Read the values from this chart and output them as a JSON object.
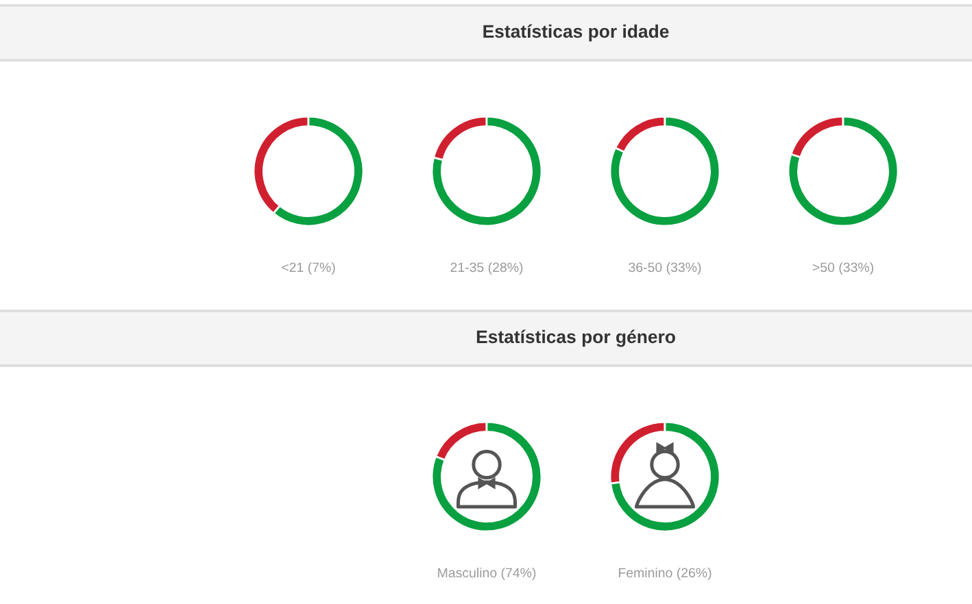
{
  "chart_data": [
    {
      "type": "other",
      "title": "Estatísticas por idade"
    },
    {
      "type": "donut",
      "xlabel": "<21 (7%)",
      "categories": [
        null,
        null
      ],
      "values": [
        39,
        61
      ],
      "colors": [
        "#d0202f",
        "#08a040"
      ]
    },
    {
      "type": "donut",
      "xlabel": "21-35 (28%)",
      "categories": [
        null,
        null
      ],
      "values": [
        21,
        79
      ],
      "colors": [
        "#d0202f",
        "#08a040"
      ]
    },
    {
      "type": "donut",
      "xlabel": "36-50 (33%)",
      "categories": [
        null,
        null
      ],
      "values": [
        18,
        82
      ],
      "colors": [
        "#d0202f",
        "#08a040"
      ]
    },
    {
      "type": "donut",
      "xlabel": ">50 (33%)",
      "categories": [
        null,
        null
      ],
      "values": [
        20,
        80
      ],
      "colors": [
        "#d0202f",
        "#08a040"
      ]
    },
    {
      "type": "other",
      "title": "Estatísticas por género"
    },
    {
      "type": "donut",
      "xlabel": "Masculino (74%)",
      "categories": [
        null,
        null
      ],
      "values": [
        19,
        81
      ],
      "colors": [
        "#d0202f",
        "#08a040"
      ]
    },
    {
      "type": "donut",
      "xlabel": "Feminino (26%)",
      "categories": [
        null,
        null
      ],
      "values": [
        27,
        73
      ],
      "colors": [
        "#d0202f",
        "#08a040"
      ]
    }
  ]
}
